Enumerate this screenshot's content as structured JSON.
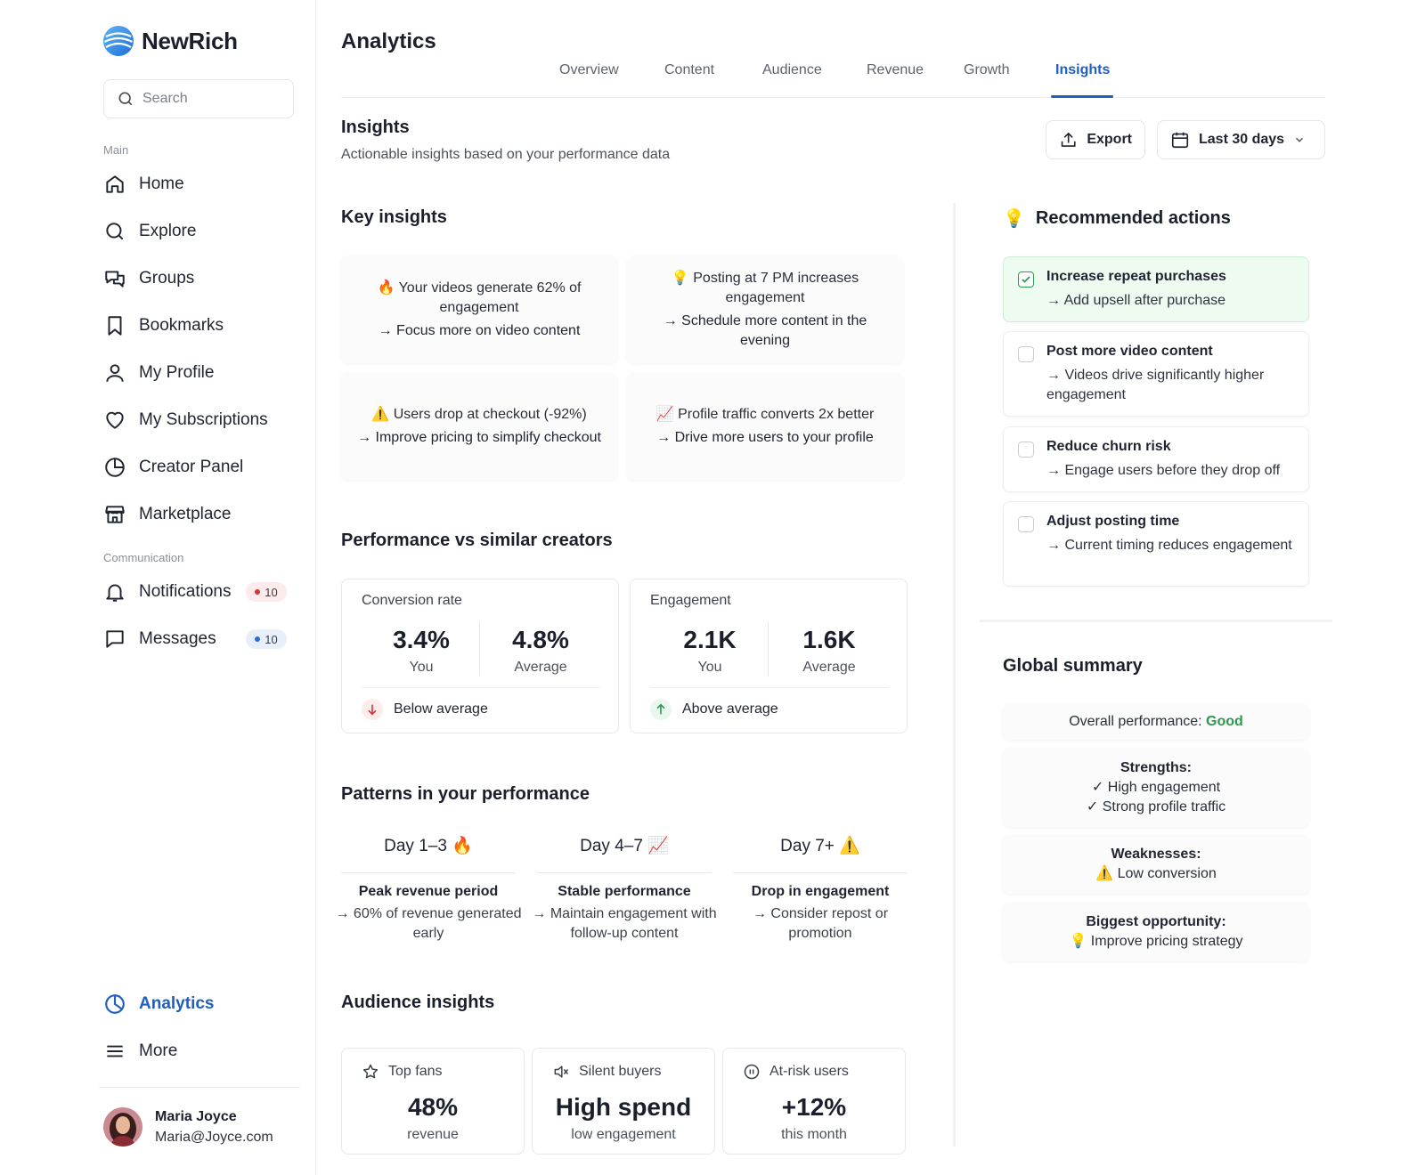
{
  "brand": {
    "name": "NewRich",
    "accent": "#1f5fbf",
    "success": "#2b9a4f",
    "danger": "#d43434"
  },
  "search": {
    "placeholder": "Search"
  },
  "sidebar": {
    "main_label": "Main",
    "items": [
      {
        "label": "Home",
        "icon": "home-icon"
      },
      {
        "label": "Explore",
        "icon": "search-icon"
      },
      {
        "label": "Groups",
        "icon": "chat-bubbles-icon"
      },
      {
        "label": "Bookmarks",
        "icon": "bookmark-icon"
      },
      {
        "label": "My Profile",
        "icon": "user-icon"
      },
      {
        "label": "My Subscriptions",
        "icon": "heart-icon"
      },
      {
        "label": "Creator Panel",
        "icon": "pie-chart-icon"
      },
      {
        "label": "Marketplace",
        "icon": "store-icon"
      }
    ],
    "communication_label": "Communication",
    "comm_items": [
      {
        "label": "Notifications",
        "icon": "bell-icon",
        "badge": "10",
        "badge_color": "#d43434"
      },
      {
        "label": "Messages",
        "icon": "message-icon",
        "badge": "10",
        "badge_color": "#2d6bd3"
      }
    ],
    "bottom_items": [
      {
        "label": "Analytics",
        "icon": "analytics-icon",
        "active": true
      },
      {
        "label": "More",
        "icon": "menu-icon"
      }
    ],
    "user": {
      "name": "Maria Joyce",
      "email": "Maria@Joyce.com"
    }
  },
  "header": {
    "title": "Analytics",
    "tabs": [
      "Overview",
      "Content",
      "Audience",
      "Revenue",
      "Growth",
      "Insights"
    ],
    "active_tab": "Insights"
  },
  "insights_section": {
    "title": "Insights",
    "subtitle": "Actionable insights based on your performance data",
    "export_label": "Export",
    "date_range": "Last 30 days"
  },
  "key_insights": {
    "title": "Key insights",
    "cards": [
      {
        "icon": "🔥",
        "text": "Your videos generate 62% of engagement",
        "action": "→ Focus more on video content"
      },
      {
        "icon": "💡",
        "text": "Posting at 7 PM increases engagement",
        "action": "→ Schedule more content in the evening"
      },
      {
        "icon": "⚠️",
        "text": "Users drop at checkout (-92%)",
        "action": "→ Improve pricing to simplify checkout"
      },
      {
        "icon": "📈",
        "text": "Profile traffic converts 2x better",
        "action": "→ Drive more users to your profile"
      }
    ]
  },
  "performance": {
    "title": "Performance vs similar creators",
    "cards": [
      {
        "label": "Conversion rate",
        "you": "3.4%",
        "you_label": "You",
        "avg": "4.8%",
        "avg_label": "Average",
        "status": "Below average",
        "trend": "down"
      },
      {
        "label": "Engagement",
        "you": "2.1K",
        "you_label": "You",
        "avg": "1.6K",
        "avg_label": "Average",
        "status": "Above average",
        "trend": "up"
      }
    ]
  },
  "patterns": {
    "title": "Patterns in your performance",
    "items": [
      {
        "head": "Day 1–3",
        "icon": "🔥",
        "title": "Peak revenue period",
        "desc": "→ 60% of revenue generated early"
      },
      {
        "head": "Day 4–7",
        "icon": "📈",
        "title": "Stable performance",
        "desc": "→ Maintain engagement with follow-up content"
      },
      {
        "head": "Day 7+",
        "icon": "⚠️",
        "title": "Drop in engagement",
        "desc": "→ Consider repost or promotion"
      }
    ]
  },
  "audience": {
    "title": "Audience insights",
    "cards": [
      {
        "label": "Top fans",
        "icon": "star-icon",
        "value": "48%",
        "caption": "revenue"
      },
      {
        "label": "Silent buyers",
        "icon": "mute-icon",
        "value": "High spend",
        "caption": "low engagement"
      },
      {
        "label": "At-risk users",
        "icon": "pause-icon",
        "value": "+12%",
        "caption": "this month"
      }
    ]
  },
  "recommended": {
    "title": "Recommended actions",
    "icon": "💡",
    "items": [
      {
        "title": "Increase repeat purchases",
        "desc": "→ Add upsell after purchase",
        "checked": true
      },
      {
        "title": "Post more video content",
        "desc": "→ Videos drive significantly higher engagement",
        "checked": false
      },
      {
        "title": "Reduce churn risk",
        "desc": "→ Engage users before they drop off",
        "checked": false
      },
      {
        "title": "Adjust posting time",
        "desc": "→ Current timing reduces engagement",
        "checked": false
      }
    ]
  },
  "global_summary": {
    "title": "Global summary",
    "overall_label": "Overall performance:",
    "overall_value": "Good",
    "strengths_label": "Strengths:",
    "strengths": [
      "✓ High engagement",
      "✓ Strong profile traffic"
    ],
    "weaknesses_label": "Weaknesses:",
    "weaknesses": [
      "⚠️ Low conversion"
    ],
    "opportunity_label": "Biggest opportunity:",
    "opportunity": "💡 Improve pricing strategy"
  }
}
